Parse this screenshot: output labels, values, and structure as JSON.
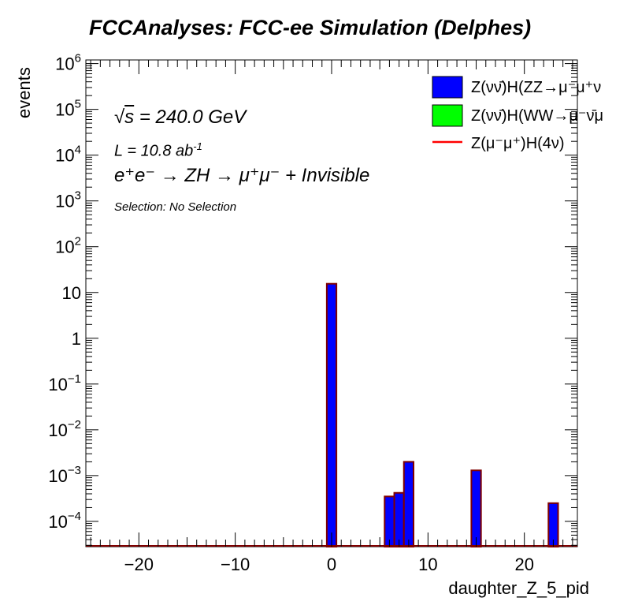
{
  "title": "FCCAnalyses: FCC-ee Simulation (Delphes)",
  "annotations": {
    "sqrt_s": "240.0 GeV",
    "lumi_value": "10.8 ab",
    "lumi_exp": "-1",
    "process": "e⁺e⁻ → ZH → μ⁺μ⁻ + Invisible",
    "selection": "Selection: No Selection"
  },
  "legend": [
    {
      "label": "Z(νν̄)H(ZZ→μ⁻μ⁺ν",
      "color": "#0000ff",
      "kind": "fill"
    },
    {
      "label": "Z(νν̄)H(WW→μ⁻ν̄μ",
      "color": "#00ff00",
      "kind": "fill"
    },
    {
      "label": "Z(μ⁻μ⁺)H(4ν)",
      "color": "#ff0000",
      "kind": "line"
    }
  ],
  "chart_data": {
    "type": "bar",
    "title": "FCCAnalyses: FCC-ee Simulation (Delphes)",
    "xlabel": "daughter_Z_5_pid",
    "ylabel": "events",
    "xlim": [
      -25.5,
      25.5
    ],
    "ylim": [
      2.8e-05,
      1200000.0
    ],
    "yscale": "log",
    "bin_width": 1,
    "x_ticks": [
      -20,
      -10,
      0,
      10,
      20
    ],
    "x_tick_labels": [
      "−20",
      "−10",
      "0",
      "10",
      "20"
    ],
    "y_ticks": [
      0.0001,
      0.001,
      0.01,
      0.1,
      1,
      10,
      100,
      1000,
      10000,
      100000,
      1000000
    ],
    "y_tick_labels": [
      {
        "base": "10",
        "exp": "−4"
      },
      {
        "base": "10",
        "exp": "−3"
      },
      {
        "base": "10",
        "exp": "−2"
      },
      {
        "base": "10",
        "exp": "−1"
      },
      {
        "base": "1",
        "exp": ""
      },
      {
        "base": "10",
        "exp": ""
      },
      {
        "base": "10",
        "exp": "2"
      },
      {
        "base": "10",
        "exp": "3"
      },
      {
        "base": "10",
        "exp": "4"
      },
      {
        "base": "10",
        "exp": "5"
      },
      {
        "base": "10",
        "exp": "6"
      }
    ],
    "series": [
      {
        "name": "Z(νν̄)H(ZZ→μ⁻μ⁺ν",
        "color": "#0000ff",
        "bins": [
          {
            "x": 0,
            "value": 15.5
          },
          {
            "x": 6,
            "value": 0.00035
          },
          {
            "x": 7,
            "value": 0.00042
          },
          {
            "x": 8,
            "value": 0.002
          },
          {
            "x": 15,
            "value": 0.0013
          },
          {
            "x": 23,
            "value": 0.00025
          }
        ]
      }
    ],
    "grid": false,
    "legend_position": "top-right"
  }
}
